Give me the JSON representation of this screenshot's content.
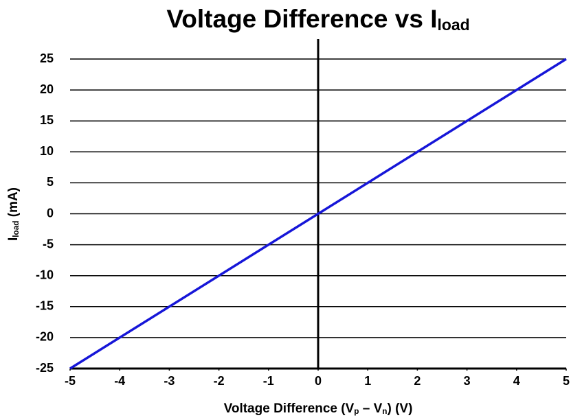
{
  "chart_data": {
    "type": "line",
    "title": [
      "Voltage Difference vs I",
      "load"
    ],
    "x_label": [
      "Voltage Difference (V",
      "p",
      " – V",
      "n",
      ") (V)"
    ],
    "y_label": [
      "I",
      "load",
      " (mA)"
    ],
    "x": [
      -5,
      5
    ],
    "series": [
      {
        "color": "#1616d8",
        "values": [
          -25,
          25
        ]
      }
    ],
    "xlim": [
      -5,
      5
    ],
    "xticks": [
      -5,
      -4,
      -3,
      -2,
      -1,
      0,
      1,
      2,
      3,
      4,
      5
    ],
    "ylim": [
      -25,
      25
    ],
    "yticks": [
      -25,
      -20,
      -15,
      -10,
      -5,
      0,
      5,
      10,
      15,
      20,
      25
    ],
    "grid": true
  }
}
